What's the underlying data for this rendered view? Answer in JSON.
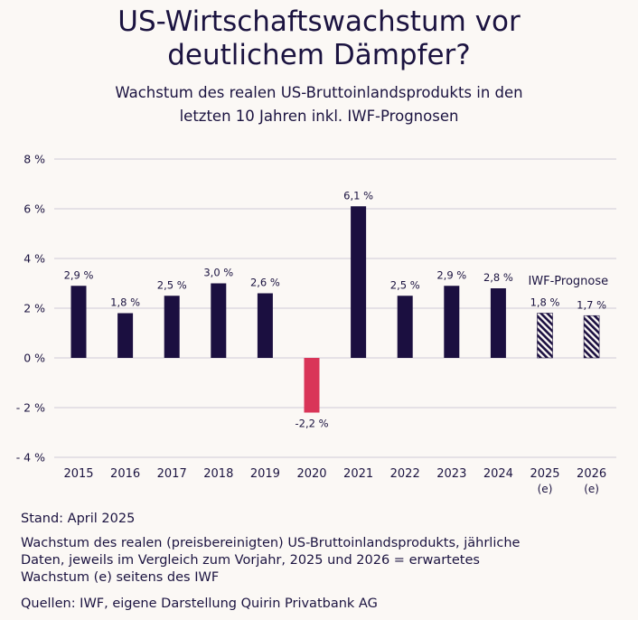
{
  "title_line1": "US-Wirtschaftswachstum vor",
  "title_line2": "deutlichem Dämpfer?",
  "subtitle_line1": "Wachstum des realen US-Bruttoinlandsprodukts in den",
  "subtitle_line2": "letzten 10 Jahren inkl. IWF-Prognosen",
  "colors": {
    "actual": "#1b0f40",
    "negative": "#d93558",
    "forecast": "#1b0f40",
    "grid": "#cfcad6",
    "text": "#1b1340",
    "background": "#fbf8f5"
  },
  "chart_data": {
    "type": "bar",
    "categories": [
      "2015",
      "2016",
      "2017",
      "2018",
      "2019",
      "2020",
      "2021",
      "2022",
      "2023",
      "2024",
      "2025",
      "2026"
    ],
    "category_sublabels": [
      "",
      "",
      "",
      "",
      "",
      "",
      "",
      "",
      "",
      "",
      "(e)",
      "(e)"
    ],
    "values": [
      2.9,
      1.8,
      2.5,
      3.0,
      2.6,
      -2.2,
      6.1,
      2.5,
      2.9,
      2.8,
      1.8,
      1.7
    ],
    "value_labels": [
      "2,9 %",
      "1,8 %",
      "2,5 %",
      "3,0 %",
      "2,6 %",
      "-2,2 %",
      "6,1 %",
      "2,5 %",
      "2,9 %",
      "2,8 %",
      "1,8 %",
      "1,7 %"
    ],
    "forecast": [
      false,
      false,
      false,
      false,
      false,
      false,
      false,
      false,
      false,
      false,
      true,
      true
    ],
    "forecast_label": "IWF-Prognose",
    "y_ticks": [
      -4,
      -2,
      0,
      2,
      4,
      6,
      8
    ],
    "y_tick_labels": [
      "- 4 %",
      "- 2 %",
      "0 %",
      "2 %",
      "4 %",
      "6 %",
      "8 %"
    ],
    "ylim": [
      -4,
      8
    ],
    "grid": true,
    "xlabel": "",
    "ylabel": ""
  },
  "footer": {
    "stand": "Stand: April 2025",
    "description_line1": "Wachstum des realen (preisbereinigten) US-Bruttoinlandsprodukts, jährliche",
    "description_line2": "Daten, jeweils im Vergleich zum Vorjahr, 2025 und 2026 = erwartetes",
    "description_line3": "Wachstum (e) seitens des IWF",
    "sources": "Quellen: IWF, eigene Darstellung Quirin Privatbank AG"
  }
}
